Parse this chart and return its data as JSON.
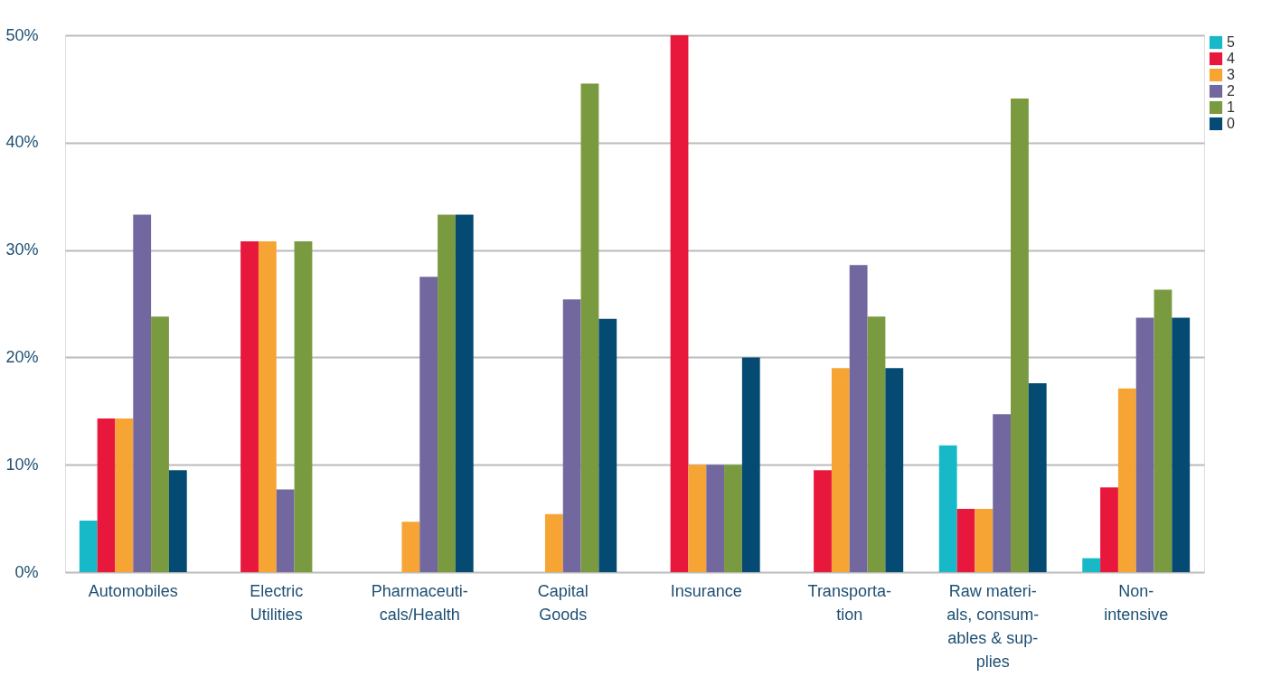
{
  "chart_data": {
    "type": "bar",
    "categories": [
      "Automobiles",
      "Electric\nUtilities",
      "Pharmaceuti-\ncals/Health",
      "Capital\nGoods",
      "Insurance",
      "Transporta-\ntion",
      "Raw materi-\nals, consum-\nables & sup-\nplies",
      "Non-\nintensive"
    ],
    "series": [
      {
        "name": "5",
        "color": "#17b8c8",
        "values": [
          4.8,
          null,
          null,
          null,
          null,
          null,
          11.8,
          1.3
        ]
      },
      {
        "name": "4",
        "color": "#e8173c",
        "values": [
          14.3,
          30.8,
          null,
          null,
          50,
          9.5,
          5.9,
          7.9
        ]
      },
      {
        "name": "3",
        "color": "#f6a534",
        "values": [
          14.3,
          30.8,
          4.7,
          5.4,
          10,
          19,
          5.9,
          17.1
        ]
      },
      {
        "name": "2",
        "color": "#72679e",
        "values": [
          33.3,
          7.7,
          27.5,
          25.4,
          10,
          28.6,
          14.7,
          23.7
        ]
      },
      {
        "name": "1",
        "color": "#7a9a40",
        "values": [
          23.8,
          30.8,
          33.3,
          45.5,
          10,
          23.8,
          44.1,
          26.3
        ]
      },
      {
        "name": "0",
        "color": "#044a72",
        "values": [
          9.5,
          null,
          33.3,
          23.6,
          20,
          19,
          17.6,
          23.7
        ]
      }
    ],
    "ylim": [
      0,
      50
    ],
    "yticks": [
      {
        "value": 0,
        "label": "0%"
      },
      {
        "value": 10,
        "label": "10%"
      },
      {
        "value": 20,
        "label": "20%"
      },
      {
        "value": 30,
        "label": "30%"
      },
      {
        "value": 40,
        "label": "40%"
      },
      {
        "value": 50,
        "label": "50%"
      }
    ],
    "grid": "y",
    "legend": "top right"
  }
}
